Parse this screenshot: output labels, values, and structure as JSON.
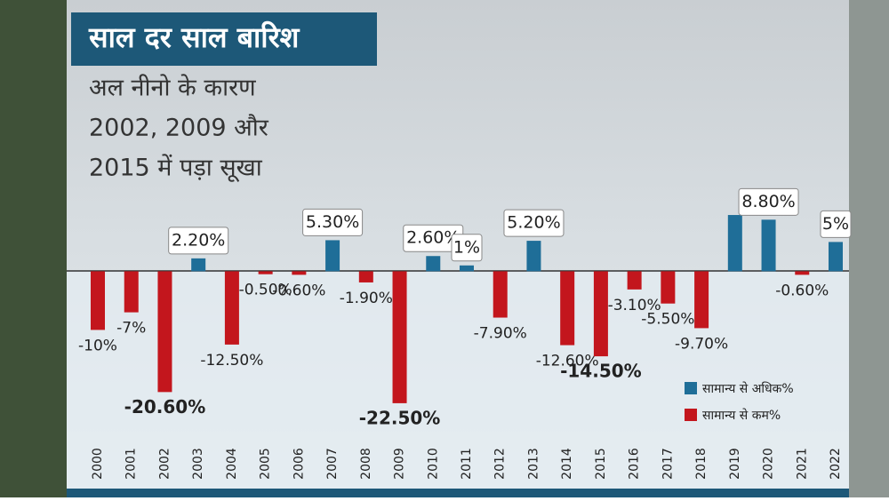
{
  "chart_data": {
    "type": "bar",
    "title": "साल दर साल बारिश",
    "subtitle": [
      "अल नीनो के कारण",
      "2002, 2009 और",
      "2015 में पड़ा सूखा"
    ],
    "categories": [
      "2000",
      "2001",
      "2002",
      "2003",
      "2004",
      "2005",
      "2006",
      "2007",
      "2008",
      "2009",
      "2010",
      "2011",
      "2012",
      "2013",
      "2014",
      "2015",
      "2016",
      "2017",
      "2018",
      "2019",
      "2020",
      "2021",
      "2022"
    ],
    "values": [
      -10,
      -7,
      -20.6,
      2.2,
      -12.5,
      -0.5,
      -0.6,
      5.3,
      -1.9,
      -22.5,
      2.6,
      1,
      -7.9,
      5.2,
      -12.6,
      -14.5,
      -3.1,
      -5.5,
      -9.7,
      9.6,
      8.8,
      -0.6,
      5
    ],
    "value_labels": [
      "-10%",
      "-7%",
      "-20.60%",
      "2.20%",
      "-12.50%",
      "-0.50%",
      "-0.60%",
      "5.30%",
      "-1.90%",
      "-22.50%",
      "2.60%",
      "1%",
      "-7.90%",
      "5.20%",
      "-12.60%",
      "-14.50%",
      "-3.10%",
      "-5.50%",
      "-9.70%",
      null,
      "8.80%",
      "-0.60%",
      "5%"
    ],
    "series_names": [
      "सामान्य से अधिक%",
      "सामान्य से कम%"
    ],
    "colors": [
      "#1f6e98",
      "#c3161d"
    ],
    "ylim": [
      -26,
      14
    ]
  }
}
